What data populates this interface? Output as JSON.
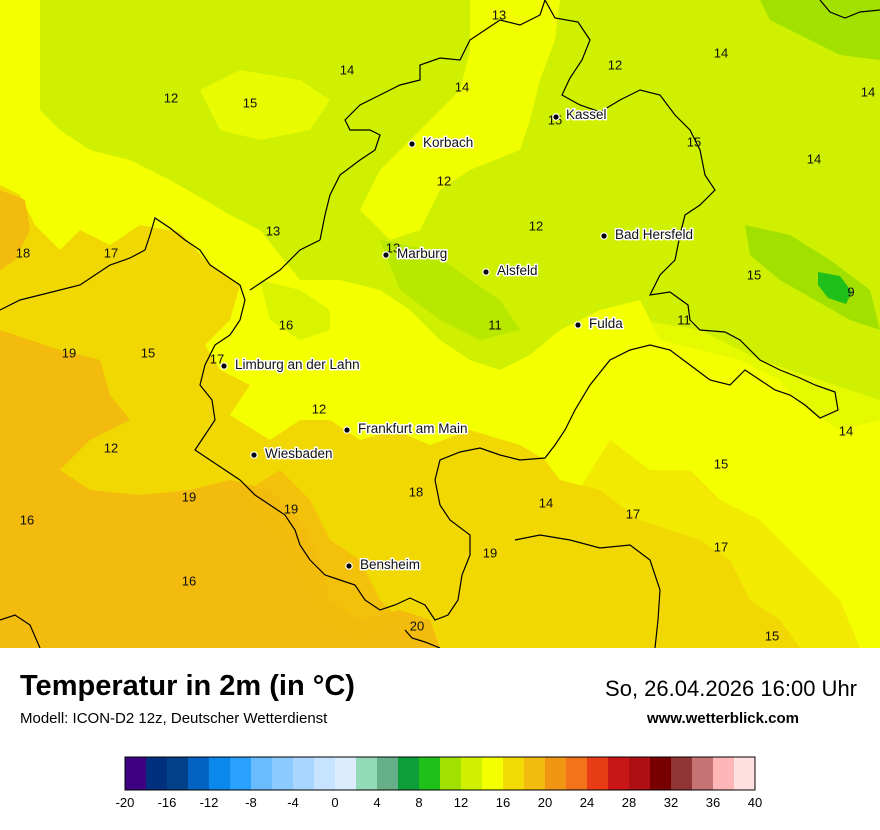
{
  "header": {
    "title": "Temperatur in 2m (in °C)",
    "model": "Modell: ICON-D2 12z, Deutscher Wetterdienst",
    "datetime": "So, 26.04.2026 16:00 Uhr",
    "website": "www.wetterblick.com"
  },
  "cities": [
    {
      "name": "Kassel"
    },
    {
      "name": "Korbach"
    },
    {
      "name": "Bad Hersfeld"
    },
    {
      "name": "Marburg"
    },
    {
      "name": "Alsfeld"
    },
    {
      "name": "Fulda"
    },
    {
      "name": "Limburg an der Lahn"
    },
    {
      "name": "Frankfurt am Main"
    },
    {
      "name": "Wiesbaden"
    },
    {
      "name": "Bensheim"
    }
  ],
  "temperature_labels": [
    "13",
    "14",
    "12",
    "14",
    "15",
    "14",
    "12",
    "15",
    "14",
    "12",
    "15",
    "13",
    "14",
    "12",
    "18",
    "17",
    "13",
    "12",
    "16",
    "19",
    "15",
    "17",
    "11",
    "11",
    "15",
    "9",
    "12",
    "14",
    "15",
    "16",
    "19",
    "19",
    "18",
    "16",
    "14",
    "17",
    "17",
    "16",
    "19",
    "20",
    "15"
  ],
  "legend": {
    "colors": [
      "#3d0080",
      "#00307e",
      "#004189",
      "#0363c2",
      "#0b88ec",
      "#2aa0ff",
      "#6bbcff",
      "#8ccbff",
      "#a9d6ff",
      "#c6e3ff",
      "#dcecff",
      "#93dab8",
      "#66af88",
      "#0d9e3a",
      "#20c01a",
      "#a2e000",
      "#cff000",
      "#f4ff00",
      "#f2da04",
      "#f2bb0d",
      "#f19614",
      "#f2731b",
      "#e83c16",
      "#c91718",
      "#ad0f14",
      "#790000",
      "#8f3535",
      "#c77373",
      "#feb6b6",
      "#ffe0e0"
    ],
    "ticks": [
      "-20",
      "-16",
      "-12",
      "-8",
      "-4",
      "0",
      "4",
      "8",
      "12",
      "16",
      "20",
      "24",
      "28",
      "32",
      "36",
      "40"
    ]
  }
}
